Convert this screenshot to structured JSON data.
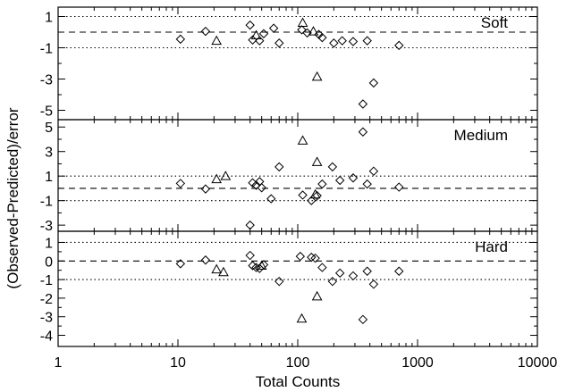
{
  "chart_data": {
    "type": "scatter",
    "xlabel": "Total Counts",
    "ylabel": "(Observed-Predicted)/error",
    "x_scale": "log",
    "xlim": [
      1,
      10000
    ],
    "x_ticks": [
      1,
      10,
      100,
      1000,
      10000
    ],
    "x_tick_labels": [
      "1",
      "10",
      "100",
      "1000",
      "10000"
    ],
    "marker_types": {
      "diamond": "diamond",
      "triangle": "triangle"
    },
    "panels": [
      {
        "name": "Soft",
        "ylim": [
          -5.6,
          1.6
        ],
        "y_ticks": [
          1,
          -1,
          -3,
          -5
        ],
        "y_tick_labels": [
          "1",
          "-1",
          "-3",
          "-5"
        ],
        "reference_lines": {
          "dashed": [
            0
          ],
          "dotted": [
            1,
            -1
          ]
        },
        "series": [
          {
            "marker": "diamond",
            "points": [
              [
                10.5,
                -0.45
              ],
              [
                17,
                0.05
              ],
              [
                40,
                0.45
              ],
              [
                42,
                -0.5
              ],
              [
                48,
                -0.55
              ],
              [
                52,
                -0.1
              ],
              [
                63,
                0.25
              ],
              [
                70,
                -0.7
              ],
              [
                108,
                0.15
              ],
              [
                120,
                -0.05
              ],
              [
                150,
                -0.15
              ],
              [
                160,
                -0.35
              ],
              [
                200,
                -0.7
              ],
              [
                235,
                -0.55
              ],
              [
                290,
                -0.6
              ],
              [
                380,
                -0.55
              ],
              [
                350,
                -4.6
              ],
              [
                430,
                -3.25
              ],
              [
                700,
                -0.85
              ]
            ]
          },
          {
            "marker": "triangle",
            "points": [
              [
                21,
                -0.55
              ],
              [
                45,
                -0.2
              ],
              [
                110,
                0.6
              ],
              [
                135,
                0.05
              ],
              [
                145,
                -2.85
              ]
            ]
          }
        ]
      },
      {
        "name": "Medium",
        "ylim": [
          -3.5,
          5.6
        ],
        "y_ticks": [
          5,
          3,
          1,
          -1,
          -3
        ],
        "y_tick_labels": [
          "5",
          "3",
          "1",
          "-1",
          "-3"
        ],
        "reference_lines": {
          "dashed": [
            0
          ],
          "dotted": [
            1,
            -1
          ]
        },
        "series": [
          {
            "marker": "diamond",
            "points": [
              [
                10.5,
                0.4
              ],
              [
                17,
                -0.05
              ],
              [
                40,
                -3.0
              ],
              [
                42,
                0.45
              ],
              [
                45,
                0.25
              ],
              [
                48,
                0.55
              ],
              [
                50,
                0.05
              ],
              [
                60,
                -0.85
              ],
              [
                70,
                1.75
              ],
              [
                110,
                -0.55
              ],
              [
                130,
                -1.0
              ],
              [
                145,
                -0.6
              ],
              [
                160,
                0.35
              ],
              [
                195,
                1.75
              ],
              [
                225,
                0.65
              ],
              [
                290,
                0.85
              ],
              [
                350,
                4.6
              ],
              [
                380,
                0.35
              ],
              [
                430,
                1.4
              ],
              [
                700,
                0.1
              ]
            ]
          },
          {
            "marker": "triangle",
            "points": [
              [
                21,
                0.75
              ],
              [
                25,
                1.0
              ],
              [
                110,
                3.9
              ],
              [
                140,
                -0.5
              ],
              [
                145,
                2.15
              ]
            ]
          }
        ]
      },
      {
        "name": "Hard",
        "ylim": [
          -4.6,
          1.6
        ],
        "y_ticks": [
          1,
          0,
          -1,
          -2,
          -3,
          -4
        ],
        "y_tick_labels": [
          "1",
          "0",
          "-1",
          "-2",
          "-3",
          "-4"
        ],
        "reference_lines": {
          "dashed": [
            0
          ],
          "dotted": [
            1,
            -1
          ]
        },
        "series": [
          {
            "marker": "diamond",
            "points": [
              [
                10.5,
                -0.15
              ],
              [
                17,
                0.05
              ],
              [
                40,
                0.3
              ],
              [
                42,
                -0.25
              ],
              [
                45,
                -0.35
              ],
              [
                48,
                -0.4
              ],
              [
                52,
                -0.2
              ],
              [
                70,
                -1.1
              ],
              [
                105,
                0.25
              ],
              [
                130,
                0.2
              ],
              [
                140,
                0.15
              ],
              [
                160,
                -0.35
              ],
              [
                195,
                -1.1
              ],
              [
                225,
                -0.65
              ],
              [
                290,
                -0.8
              ],
              [
                350,
                -3.15
              ],
              [
                380,
                -0.55
              ],
              [
                430,
                -1.25
              ],
              [
                700,
                -0.55
              ]
            ]
          },
          {
            "marker": "triangle",
            "points": [
              [
                21,
                -0.45
              ],
              [
                24,
                -0.6
              ],
              [
                50,
                -0.25
              ],
              [
                108,
                -3.1
              ],
              [
                145,
                -1.9
              ]
            ]
          }
        ]
      }
    ]
  }
}
